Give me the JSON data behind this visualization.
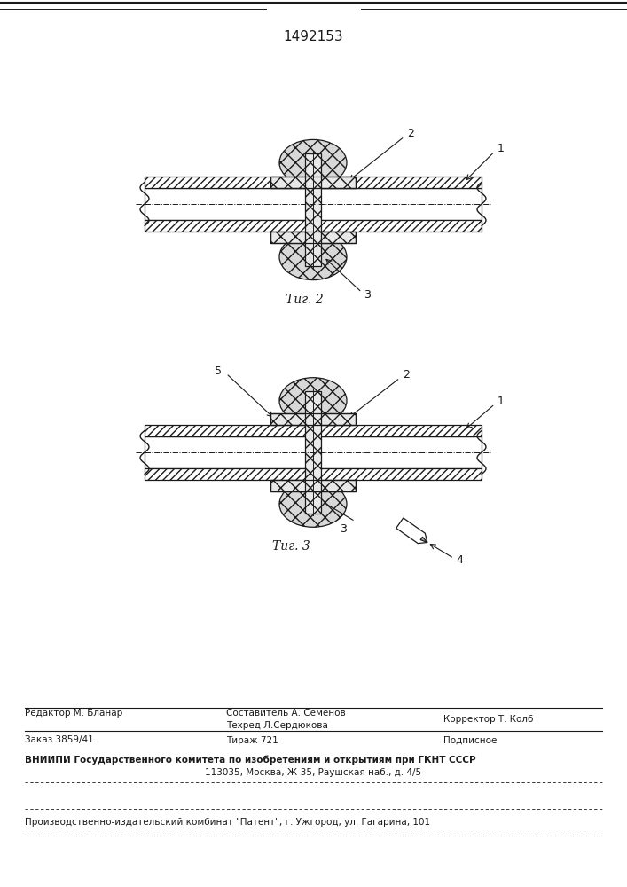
{
  "title": "1492153",
  "fig2_label": "Τиг. 2",
  "fig3_label": "Τиг. 3",
  "label1": "1",
  "label2": "2",
  "label3": "3",
  "label4": "4",
  "label5": "5",
  "footer_editor": "Редактор М. Бланар",
  "footer_compiler": "Составитель А. Семенов",
  "footer_techred": "Техред Л.Сердюкова",
  "footer_corrector": "Корректор Т. Колб",
  "footer_order": "Заказ 3859/41",
  "footer_tirazh": "Тираж 721",
  "footer_podp": "Подписное",
  "footer_vniip1": "ВНИИПИ Государственного комитета по изобретениям и открытиям при ГКНТ СССР",
  "footer_vniip2": "113035, Москва, Ж-35, Раушская наб., д. 4/5",
  "footer_patent": "Производственно-издательский комбинат \"Патент\", г. Ужгород, ул. Гагарина, 101",
  "bg_color": "#ffffff",
  "lc": "#1a1a1a"
}
